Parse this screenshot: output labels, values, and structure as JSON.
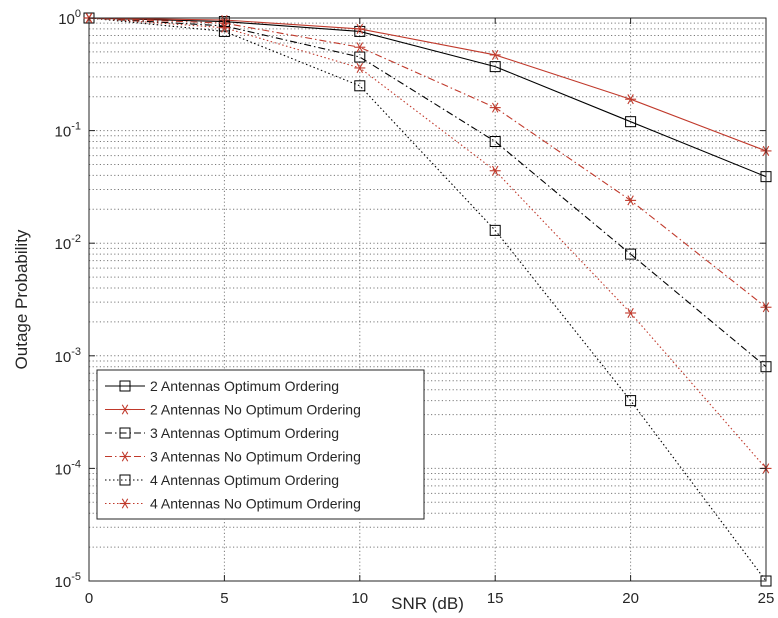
{
  "chart_data": {
    "type": "line",
    "title": "",
    "xlabel": "SNR (dB)",
    "ylabel": "Outage Probability",
    "x_scale": "linear",
    "y_scale": "log",
    "xlim": [
      0,
      25
    ],
    "ylim": [
      1e-05,
      1
    ],
    "x_ticks": [
      0,
      5,
      10,
      15,
      20,
      25
    ],
    "y_ticks": [
      {
        "value": 1,
        "base": "10",
        "exp": "0"
      },
      {
        "value": 0.1,
        "base": "10",
        "exp": "-1"
      },
      {
        "value": 0.01,
        "base": "10",
        "exp": "-2"
      },
      {
        "value": 0.001,
        "base": "10",
        "exp": "-3"
      },
      {
        "value": 0.0001,
        "base": "10",
        "exp": "-4"
      },
      {
        "value": 1e-05,
        "base": "10",
        "exp": "-5"
      }
    ],
    "grid": true,
    "legend_position": "bottom-left",
    "series": [
      {
        "name": "2 Antennas Optimum Ordering",
        "color": "#000000",
        "dash": "solid",
        "marker": "square",
        "x": [
          0,
          5,
          10,
          15,
          20,
          25
        ],
        "y": [
          1.0,
          0.93,
          0.76,
          0.37,
          0.12,
          0.039
        ]
      },
      {
        "name": "2 Antennas No Optimum Ordering",
        "color": "#c0392b",
        "dash": "solid",
        "marker": "star",
        "x": [
          0,
          5,
          10,
          15,
          20,
          25
        ],
        "y": [
          1.0,
          0.96,
          0.8,
          0.47,
          0.19,
          0.066
        ]
      },
      {
        "name": "3 Antennas Optimum Ordering",
        "color": "#000000",
        "dash": "dashdot",
        "marker": "square",
        "x": [
          0,
          5,
          10,
          15,
          20,
          25
        ],
        "y": [
          1.0,
          0.85,
          0.45,
          0.08,
          0.008,
          0.0008
        ]
      },
      {
        "name": "3 Antennas No Optimum Ordering",
        "color": "#c0392b",
        "dash": "dashdot",
        "marker": "star",
        "x": [
          0,
          5,
          10,
          15,
          20,
          25
        ],
        "y": [
          1.0,
          0.9,
          0.55,
          0.16,
          0.024,
          0.0027
        ]
      },
      {
        "name": "4 Antennas Optimum Ordering",
        "color": "#000000",
        "dash": "dotted",
        "marker": "square",
        "x": [
          0,
          5,
          10,
          15,
          20,
          25
        ],
        "y": [
          1.0,
          0.76,
          0.25,
          0.013,
          0.0004,
          1e-05
        ]
      },
      {
        "name": "4 Antennas No Optimum Ordering",
        "color": "#c0392b",
        "dash": "dotted",
        "marker": "star",
        "x": [
          0,
          5,
          10,
          15,
          20,
          25
        ],
        "y": [
          1.0,
          0.82,
          0.36,
          0.044,
          0.0024,
          0.0001
        ]
      }
    ]
  }
}
